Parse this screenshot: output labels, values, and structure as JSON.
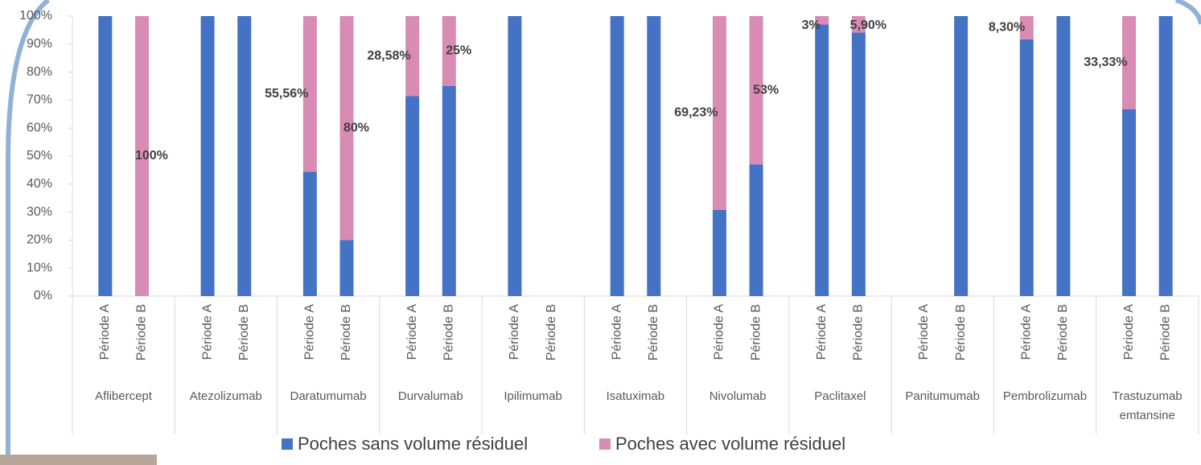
{
  "chart_data": {
    "type": "stacked_bar",
    "groups": [
      "Aflibercept",
      "Atezolizumab",
      "Daratumumab",
      "Durvalumab",
      "Ipilimumab",
      "Isatuximab",
      "Nivolumab",
      "Paclitaxel",
      "Panitumumab",
      "Pembrolizumab",
      "Trastuzumab emtansine"
    ],
    "categories": [
      "Période A",
      "Période B",
      "Période A",
      "Période B",
      "Période A",
      "Période B",
      "Période A",
      "Période B",
      "Période A",
      "Période B",
      "Période A",
      "Période B",
      "Période A",
      "Période B",
      "Période A",
      "Période B",
      "Période A",
      "Période B",
      "Période A",
      "Période B",
      "Période A",
      "Période B"
    ],
    "series": [
      {
        "name": "Poches sans volume résiduel",
        "color": "#4472c4",
        "values": [
          100,
          null,
          100,
          100,
          44.44,
          20,
          71.42,
          75,
          100,
          null,
          100,
          100,
          30.77,
          47,
          97,
          94.1,
          null,
          100,
          91.7,
          100,
          66.67,
          100
        ]
      },
      {
        "name": "Poches avec volume résiduel",
        "color": "#d98cb3",
        "values": [
          null,
          100,
          null,
          null,
          55.56,
          80,
          28.58,
          25,
          null,
          null,
          null,
          null,
          69.23,
          53,
          3,
          5.9,
          null,
          null,
          8.3,
          null,
          33.33,
          null
        ],
        "value_labels": [
          null,
          "100%",
          null,
          null,
          "55,56%",
          "80%",
          "28,58%",
          "25%",
          null,
          null,
          null,
          null,
          "69,23%",
          "53%",
          "3%",
          "5,90%",
          null,
          null,
          "8,30%",
          null,
          "33,33%",
          null
        ]
      }
    ],
    "ylim": [
      0,
      100
    ],
    "yticks": [
      {
        "value": 0,
        "label": "0%"
      },
      {
        "value": 10,
        "label": "10%"
      },
      {
        "value": 20,
        "label": "20%"
      },
      {
        "value": 30,
        "label": "30%"
      },
      {
        "value": 40,
        "label": "40%"
      },
      {
        "value": 50,
        "label": "50%"
      },
      {
        "value": 60,
        "label": "60%"
      },
      {
        "value": 70,
        "label": "70%"
      },
      {
        "value": 80,
        "label": "80%"
      },
      {
        "value": 90,
        "label": "90%"
      },
      {
        "value": 100,
        "label": "100%"
      }
    ],
    "legend": "bottom"
  }
}
